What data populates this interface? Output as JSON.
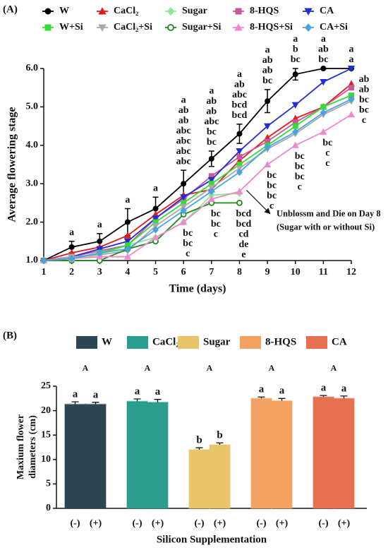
{
  "chart_data": [
    {
      "type": "line",
      "panel": "(A)",
      "x_label": "Time (days)",
      "y_label": "Average flowering stage",
      "x": [
        1,
        2,
        3,
        4,
        5,
        6,
        7,
        8,
        9,
        10,
        11,
        12
      ],
      "xlim": [
        1,
        12
      ],
      "xticks": [
        1,
        2,
        3,
        4,
        5,
        6,
        7,
        8,
        9,
        10,
        11,
        12
      ],
      "ylim": [
        1,
        6
      ],
      "yticks": [
        {
          "value": 1,
          "label": "1.0"
        },
        {
          "value": 2,
          "label": "2.0"
        },
        {
          "value": 3,
          "label": "3.0"
        },
        {
          "value": 4,
          "label": "4.0"
        },
        {
          "value": 5,
          "label": "5.0"
        },
        {
          "value": 6,
          "label": "6.0"
        }
      ],
      "series": [
        {
          "name": "W",
          "color": "#000000",
          "marker": "circle",
          "values": [
            1.0,
            1.35,
            1.5,
            2.0,
            2.35,
            3.0,
            3.65,
            4.3,
            5.15,
            5.85,
            6.0,
            6.0
          ],
          "errors": [
            0,
            0.15,
            0.2,
            0.35,
            0.3,
            0.35,
            0.2,
            0.25,
            0.3,
            0.15,
            0,
            0
          ]
        },
        {
          "name": "CaCl₂",
          "color": "#e31a1c",
          "marker": "triangle",
          "values": [
            1.0,
            1.2,
            1.35,
            1.65,
            2.2,
            2.7,
            2.85,
            3.6,
            4.2,
            4.7,
            5.0,
            5.6
          ]
        },
        {
          "name": "Sugar",
          "color": "#8fe68f",
          "marker": "diamond",
          "values": [
            1.0,
            1.05,
            1.15,
            1.4,
            1.6,
            2.0,
            2.7,
            2.75,
            null,
            null,
            null,
            null
          ]
        },
        {
          "name": "8-HQS",
          "color": "#c9579a",
          "marker": "square",
          "values": [
            1.0,
            1.1,
            1.25,
            1.4,
            2.1,
            2.6,
            3.2,
            3.7,
            4.1,
            4.6,
            5.0,
            5.5
          ]
        },
        {
          "name": "CA",
          "color": "#1f2fd0",
          "marker": "triangle-down",
          "values": [
            1.0,
            1.1,
            1.3,
            1.5,
            2.1,
            2.65,
            3.1,
            3.85,
            4.5,
            5.05,
            5.65,
            6.0
          ]
        },
        {
          "name": "W+Si",
          "color": "#33dd33",
          "marker": "square",
          "values": [
            1.0,
            1.05,
            1.2,
            1.4,
            2.0,
            2.5,
            3.0,
            3.5,
            4.0,
            4.5,
            5.0,
            5.3
          ]
        },
        {
          "name": "CaCl₂+Si",
          "color": "#a8a8a8",
          "marker": "triangle-down",
          "values": [
            1.0,
            1.1,
            1.15,
            1.25,
            1.9,
            2.4,
            2.9,
            3.4,
            3.9,
            4.3,
            4.8,
            5.15
          ]
        },
        {
          "name": "Sugar+Si",
          "color": "#1a8a1a",
          "marker": "circle-open",
          "values": [
            1.0,
            1.0,
            1.0,
            1.3,
            1.5,
            2.2,
            2.5,
            2.5,
            null,
            null,
            null,
            null
          ]
        },
        {
          "name": "8-HQS+Si",
          "color": "#ee88cc",
          "marker": "triangle",
          "values": [
            1.0,
            1.05,
            1.1,
            1.1,
            1.6,
            2.0,
            2.6,
            2.8,
            3.5,
            4.0,
            4.35,
            4.8
          ]
        },
        {
          "name": "CA+Si",
          "color": "#4aa3df",
          "marker": "diamond",
          "values": [
            1.0,
            1.05,
            1.2,
            1.3,
            1.8,
            2.3,
            2.8,
            3.3,
            3.95,
            4.35,
            4.85,
            5.2
          ]
        }
      ],
      "letters": [
        {
          "x": 2,
          "above": [
            "a"
          ]
        },
        {
          "x": 3,
          "above": [
            "a"
          ]
        },
        {
          "x": 4,
          "above": [
            "a"
          ]
        },
        {
          "x": 5,
          "above": [
            "a"
          ]
        },
        {
          "x": 6,
          "above": [
            "a",
            "ab",
            "ab",
            "abc",
            "abc",
            "abc",
            "abc"
          ],
          "below": [
            "bc",
            "bc",
            "c"
          ]
        },
        {
          "x": 7,
          "above": [
            "a",
            "ab",
            "ab",
            "abc",
            "bc",
            "bc"
          ],
          "below": [
            "bc",
            "bc",
            "c"
          ]
        },
        {
          "x": 8,
          "above": [
            "a",
            "ab",
            "abc",
            "bcd",
            "bcd"
          ],
          "below": [
            "bcd",
            "bcd",
            "cd",
            "de",
            "e"
          ]
        },
        {
          "x": 9,
          "above": [
            "a",
            "ab",
            "ab",
            "bc"
          ],
          "below": [
            "bc",
            "bc",
            "bc",
            "c"
          ]
        },
        {
          "x": 10,
          "above": [
            "a",
            "b",
            "bc"
          ],
          "below": [
            "bc",
            "bc",
            "bc",
            "c"
          ]
        },
        {
          "x": 11,
          "above": [
            "a",
            "ab",
            "bc"
          ],
          "below": [
            "bc",
            "c",
            "c"
          ]
        },
        {
          "x": 12,
          "above": [
            "a",
            "a"
          ],
          "right": [
            "ab",
            "ab",
            "bc",
            "bc",
            "c"
          ]
        }
      ],
      "annotation": {
        "x": 8,
        "y": 2.5,
        "lines": [
          "Unblossm and Die on Day 8",
          "(Sugar with or without Si)"
        ]
      }
    },
    {
      "type": "bar",
      "panel": "(B)",
      "x_label": "Silicon Supplementation",
      "y_label": [
        "Maxium flower",
        "diameters (cm)"
      ],
      "categories": [
        "W",
        "CaCl₂",
        "Sugar",
        "8-HQS",
        "CA"
      ],
      "subcategories": [
        "(-)",
        "(+)"
      ],
      "colors": [
        "#2d4654",
        "#2a9d8f",
        "#e9c46a",
        "#f4a261",
        "#e76f51"
      ],
      "group_letters": [
        "A",
        "A",
        "A",
        "A",
        "A"
      ],
      "series": [
        {
          "name": "(-)",
          "values": [
            21.3,
            21.9,
            12.0,
            22.5,
            22.8
          ],
          "errors": [
            0.5,
            0.5,
            0.4,
            0.3,
            0.3
          ],
          "letters": [
            "a",
            "a",
            "b",
            "a",
            "a"
          ]
        },
        {
          "name": "(+)",
          "values": [
            21.3,
            21.7,
            13.0,
            22.0,
            22.5
          ],
          "errors": [
            0.4,
            0.6,
            0.4,
            0.5,
            0.5
          ],
          "letters": [
            "a",
            "a",
            "b",
            "a",
            "a"
          ]
        }
      ],
      "ylim": [
        0,
        25
      ],
      "yticks": [
        0,
        5,
        10,
        15,
        20,
        25
      ]
    }
  ]
}
